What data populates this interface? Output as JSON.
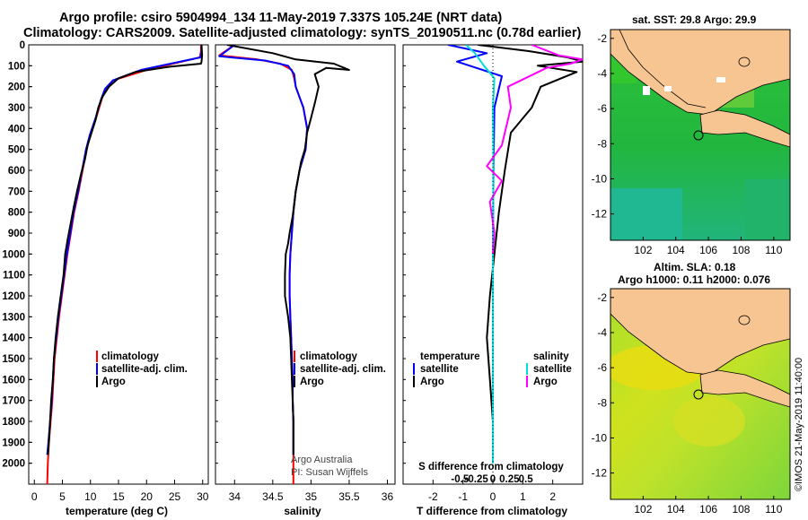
{
  "header": {
    "line1": "Argo profile: csiro 5904994_134 11-May-2019 7.337S 105.24E (NRT data)",
    "line2": "Climatology: CARS2009. Satellite-adjusted climatology: synTS_20190511.nc (0.78d earlier)"
  },
  "colors": {
    "climatology": "#ff0000",
    "satellite": "#0000ff",
    "argo": "#000000",
    "sal_diff": "#00dddd",
    "sal_diff_sat": "#ff00ff",
    "land": "#f7c592",
    "sst": "#22b33a",
    "sla": "#8fdc2e"
  },
  "chart_data": [
    {
      "type": "line",
      "xlabel": "temperature (deg C)",
      "ylabel": "",
      "xlim": [
        -1,
        31
      ],
      "ylim": [
        2100,
        0
      ],
      "xticks": [
        0,
        5,
        10,
        15,
        20,
        25,
        30
      ],
      "yticks": [
        0,
        100,
        200,
        300,
        400,
        500,
        600,
        700,
        800,
        900,
        1000,
        1100,
        1200,
        1300,
        1400,
        1500,
        1600,
        1700,
        1800,
        1900,
        2000
      ],
      "legend": [
        "climatology",
        "satellite-adj. clim.",
        "Argo"
      ],
      "series": [
        {
          "name": "climatology",
          "color": "#ff0000",
          "points": [
            [
              29.7,
              0
            ],
            [
              29.7,
              30
            ],
            [
              29.5,
              60
            ],
            [
              20,
              120
            ],
            [
              14,
              170
            ],
            [
              12.7,
              210
            ],
            [
              12,
              260
            ],
            [
              11,
              350
            ],
            [
              10,
              430
            ],
            [
              9.3,
              500
            ],
            [
              8.6,
              600
            ],
            [
              7.9,
              700
            ],
            [
              7.1,
              800
            ],
            [
              6.5,
              900
            ],
            [
              5.9,
              1000
            ],
            [
              5.4,
              1100
            ],
            [
              4.9,
              1200
            ],
            [
              4.4,
              1300
            ],
            [
              4.0,
              1400
            ],
            [
              3.6,
              1500
            ],
            [
              3.4,
              1600
            ],
            [
              3.2,
              1700
            ],
            [
              2.9,
              1800
            ],
            [
              2.6,
              1900
            ],
            [
              2.4,
              2000
            ],
            [
              2.3,
              2100
            ]
          ]
        },
        {
          "name": "satellite-adj. clim.",
          "color": "#0000ff",
          "points": [
            [
              29.8,
              0
            ],
            [
              29.8,
              30
            ],
            [
              29.6,
              60
            ],
            [
              19,
              120
            ],
            [
              14,
              170
            ],
            [
              12.6,
              210
            ],
            [
              11.9,
              260
            ],
            [
              10.9,
              350
            ],
            [
              9.9,
              430
            ],
            [
              9.2,
              500
            ],
            [
              8.5,
              600
            ],
            [
              7.8,
              700
            ],
            [
              7.0,
              800
            ],
            [
              6.4,
              900
            ],
            [
              5.8,
              1000
            ],
            [
              5.3,
              1100
            ],
            [
              4.8,
              1200
            ],
            [
              4.3,
              1300
            ],
            [
              3.9,
              1400
            ],
            [
              3.5,
              1500
            ],
            [
              3.3,
              1600
            ],
            [
              3.1,
              1700
            ],
            [
              2.8,
              1800
            ],
            [
              2.5,
              1900
            ],
            [
              2.3,
              1960
            ]
          ]
        },
        {
          "name": "Argo",
          "color": "#000000",
          "points": [
            [
              29.8,
              0
            ],
            [
              29.9,
              50
            ],
            [
              29.8,
              80
            ],
            [
              29.7,
              90
            ],
            [
              24,
              105
            ],
            [
              18,
              130
            ],
            [
              15,
              160
            ],
            [
              13.3,
              200
            ],
            [
              12.1,
              250
            ],
            [
              11.4,
              300
            ],
            [
              10.9,
              360
            ],
            [
              10.2,
              420
            ],
            [
              9.5,
              480
            ],
            [
              9.0,
              550
            ],
            [
              8.3,
              620
            ],
            [
              7.6,
              700
            ],
            [
              7.0,
              780
            ],
            [
              6.5,
              850
            ],
            [
              6.0,
              920
            ],
            [
              5.5,
              1000
            ],
            [
              5.2,
              1100
            ],
            [
              4.7,
              1200
            ],
            [
              4.2,
              1300
            ],
            [
              3.8,
              1400
            ],
            [
              3.5,
              1500
            ],
            [
              3.3,
              1600
            ],
            [
              3.0,
              1700
            ],
            [
              2.8,
              1800
            ],
            [
              2.6,
              1900
            ],
            [
              2.4,
              1960
            ]
          ]
        }
      ]
    },
    {
      "type": "line",
      "xlabel": "salinity",
      "ylabel": "",
      "xlim": [
        33.75,
        36.1
      ],
      "ylim": [
        2100,
        0
      ],
      "xticks": [
        34,
        34.5,
        35,
        35.5,
        36
      ],
      "legend": [
        "climatology",
        "satellite-adj. clim.",
        "Argo"
      ],
      "annotations": [
        "Argo Australia",
        "PI: Susan Wijffels"
      ],
      "series": [
        {
          "name": "climatology",
          "color": "#ff0000",
          "points": [
            [
              34.0,
              0
            ],
            [
              33.8,
              50
            ],
            [
              34.3,
              70
            ],
            [
              34.6,
              90
            ],
            [
              34.75,
              120
            ],
            [
              34.78,
              160
            ],
            [
              34.8,
              200
            ],
            [
              34.85,
              250
            ],
            [
              34.9,
              300
            ],
            [
              34.95,
              400
            ],
            [
              34.93,
              500
            ],
            [
              34.85,
              600
            ],
            [
              34.8,
              700
            ],
            [
              34.77,
              800
            ],
            [
              34.75,
              900
            ],
            [
              34.73,
              1000
            ],
            [
              34.72,
              1100
            ],
            [
              34.72,
              1200
            ],
            [
              34.73,
              1300
            ],
            [
              34.74,
              1400
            ],
            [
              34.75,
              1500
            ],
            [
              34.76,
              1600
            ],
            [
              34.76,
              1700
            ],
            [
              34.77,
              1800
            ],
            [
              34.77,
              1900
            ],
            [
              34.77,
              2000
            ],
            [
              34.77,
              2100
            ]
          ]
        },
        {
          "name": "satellite-adj. clim.",
          "color": "#0000ff",
          "points": [
            [
              34.0,
              0
            ],
            [
              33.8,
              55
            ],
            [
              34.4,
              75
            ],
            [
              34.7,
              100
            ],
            [
              34.78,
              140
            ],
            [
              34.8,
              200
            ],
            [
              34.85,
              250
            ],
            [
              34.9,
              300
            ],
            [
              34.95,
              400
            ],
            [
              34.93,
              500
            ],
            [
              34.85,
              600
            ],
            [
              34.8,
              700
            ],
            [
              34.77,
              800
            ],
            [
              34.75,
              900
            ],
            [
              34.73,
              1000
            ],
            [
              34.72,
              1100
            ],
            [
              34.72,
              1200
            ],
            [
              34.73,
              1300
            ],
            [
              34.74,
              1400
            ],
            [
              34.75,
              1500
            ],
            [
              34.76,
              1600
            ],
            [
              34.76,
              1700
            ],
            [
              34.77,
              1800
            ],
            [
              34.77,
              1900
            ],
            [
              34.77,
              1960
            ]
          ]
        },
        {
          "name": "Argo",
          "color": "#000000",
          "points": [
            [
              33.9,
              0
            ],
            [
              34.5,
              40
            ],
            [
              34.8,
              70
            ],
            [
              35.3,
              90
            ],
            [
              35.5,
              120
            ],
            [
              35.2,
              110
            ],
            [
              35.05,
              140
            ],
            [
              35.1,
              200
            ],
            [
              35.05,
              280
            ],
            [
              35.0,
              350
            ],
            [
              34.95,
              420
            ],
            [
              34.92,
              500
            ],
            [
              34.87,
              560
            ],
            [
              34.84,
              620
            ],
            [
              34.8,
              700
            ],
            [
              34.78,
              760
            ],
            [
              34.76,
              820
            ],
            [
              34.72,
              900
            ],
            [
              34.7,
              950
            ],
            [
              34.67,
              1000
            ],
            [
              34.66,
              1100
            ],
            [
              34.66,
              1200
            ],
            [
              34.7,
              1300
            ],
            [
              34.73,
              1400
            ],
            [
              34.74,
              1500
            ],
            [
              34.75,
              1600
            ],
            [
              34.76,
              1700
            ],
            [
              34.77,
              1800
            ],
            [
              34.77,
              1900
            ],
            [
              34.77,
              1960
            ]
          ]
        }
      ]
    },
    {
      "type": "line",
      "xlabel": "T difference from climatology",
      "ylabel": "",
      "xlim": [
        -3,
        3
      ],
      "ylim": [
        2100,
        0
      ],
      "xticks": [
        -2,
        -1,
        0,
        1,
        2
      ],
      "top_axis_label": "S difference from climatology",
      "top_xticks": [
        "-0.5",
        "-0.25",
        "0",
        "0.25",
        "0.5"
      ],
      "legend_left": [
        "temperature",
        "satellite",
        "Argo"
      ],
      "legend_right": [
        "salinity",
        "satellite",
        "Argo"
      ],
      "series": [
        {
          "name": "satellite",
          "color": "#0000ff",
          "points": [
            [
              -1.5,
              0
            ],
            [
              -0.2,
              40
            ],
            [
              -1.2,
              80
            ],
            [
              0.3,
              150
            ],
            [
              0.05,
              300
            ],
            [
              0.02,
              600
            ],
            [
              0.0,
              1000
            ],
            [
              0.0,
              1500
            ],
            [
              0.0,
              2000
            ]
          ]
        },
        {
          "name": "Argo",
          "color": "#000000",
          "points": [
            [
              -0.5,
              0
            ],
            [
              1.2,
              30
            ],
            [
              2.5,
              60
            ],
            [
              3.0,
              80
            ],
            [
              1.5,
              100
            ],
            [
              2.8,
              130
            ],
            [
              1.6,
              200
            ],
            [
              1.3,
              300
            ],
            [
              0.6,
              420
            ],
            [
              0.4,
              600
            ],
            [
              0.2,
              800
            ],
            [
              0.05,
              1000
            ],
            [
              -0.1,
              1200
            ],
            [
              -0.2,
              1400
            ],
            [
              -0.1,
              1600
            ],
            [
              0.0,
              1800
            ],
            [
              0.0,
              1960
            ]
          ]
        },
        {
          "name": "salinity satellite",
          "color": "#00dddd",
          "points": [
            [
              -0.9,
              0
            ],
            [
              -0.6,
              40
            ],
            [
              -0.3,
              100
            ],
            [
              0.05,
              160
            ],
            [
              0.0,
              300
            ],
            [
              0.02,
              600
            ],
            [
              0.0,
              1000
            ],
            [
              0.0,
              1500
            ],
            [
              0.0,
              2000
            ]
          ]
        },
        {
          "name": "salinity Argo",
          "color": "#ff00ff",
          "points": [
            [
              1.3,
              0
            ],
            [
              2.2,
              50
            ],
            [
              3.0,
              70
            ],
            [
              2.6,
              90
            ],
            [
              1.8,
              110
            ],
            [
              0.5,
              200
            ],
            [
              0.6,
              300
            ],
            [
              0.3,
              480
            ],
            [
              -0.2,
              580
            ],
            [
              0.3,
              650
            ],
            [
              -0.1,
              750
            ],
            [
              0.05,
              900
            ],
            [
              0.0,
              1000
            ]
          ]
        }
      ]
    },
    {
      "type": "heatmap",
      "title": "sat. SST: 29.8 Argo: 29.9",
      "xlim": [
        100,
        111
      ],
      "ylim": [
        -13.5,
        -1.5
      ],
      "xticks": [
        102,
        104,
        106,
        108,
        110
      ],
      "yticks": [
        -2,
        -4,
        -6,
        -8,
        -10,
        -12
      ],
      "marker": {
        "lon": 105.24,
        "lat": -7.337
      }
    },
    {
      "type": "heatmap",
      "title_line1": "Altim. SLA: 0.18",
      "title_line2": "Argo h1000: 0.11 h2000: 0.076",
      "xlim": [
        100,
        111
      ],
      "ylim": [
        -13.5,
        -1.5
      ],
      "xticks": [
        102,
        104,
        106,
        108,
        110
      ],
      "yticks": [
        -2,
        -4,
        -6,
        -8,
        -10,
        -12
      ],
      "marker": {
        "lon": 105.24,
        "lat": -7.337
      }
    }
  ],
  "footer": {
    "credit": "©IMOS 21-May-2019 11:40:00"
  }
}
